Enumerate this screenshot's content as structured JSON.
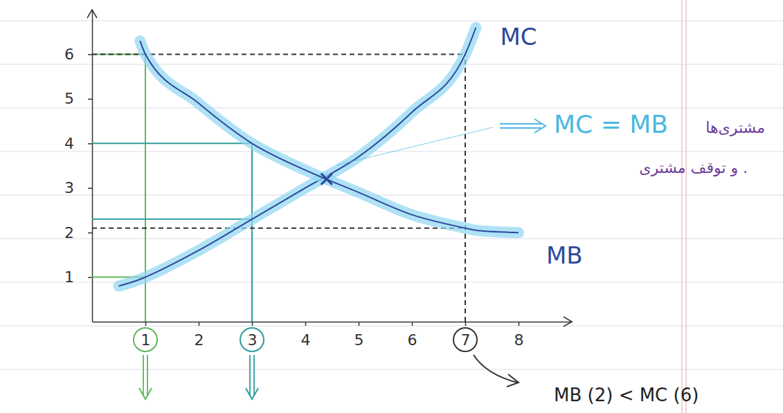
{
  "chart_data": {
    "type": "line",
    "x": [
      0.5,
      0.9,
      1,
      2,
      3,
      4,
      5,
      6,
      7,
      7.2,
      8
    ],
    "series": [
      {
        "name": "MC",
        "color": "#2c4a9c",
        "values": [
          0.8,
          0.95,
          1.0,
          1.6,
          2.3,
          3.0,
          3.7,
          4.7,
          6.0,
          6.6,
          null
        ]
      },
      {
        "name": "MB",
        "color": "#2c4a9c",
        "values": [
          null,
          6.3,
          6.0,
          4.9,
          4.0,
          3.4,
          2.9,
          2.4,
          2.1,
          2.05,
          2.0
        ]
      }
    ],
    "xlim": [
      0,
      9
    ],
    "ylim": [
      0,
      7
    ],
    "xticks": [
      1,
      2,
      3,
      4,
      5,
      6,
      7,
      8
    ],
    "yticks": [
      1,
      2,
      3,
      4,
      5,
      6
    ],
    "intersection": {
      "x": 4.4,
      "y": 3.2
    },
    "highlights": [
      {
        "x": 1,
        "values": [
          6,
          1
        ],
        "color": "#5cb85c",
        "line_style": "solid"
      },
      {
        "x": 3,
        "values": [
          4,
          2.3
        ],
        "color": "#2b9e9c",
        "line_style": "solid"
      },
      {
        "x": 7,
        "values": [
          6,
          2.1
        ],
        "color": "#333333",
        "line_style": "dashed"
      }
    ],
    "annotations": [
      {
        "text": "MC = MB",
        "color": "#4bb8e0"
      },
      {
        "text": "مشتری‌ها",
        "color": "#6a3d9a"
      },
      {
        "text": "و توقف مشتری .",
        "color": "#6a3d9a"
      },
      {
        "text": "MB (2) < MC (6)",
        "color": "#222222"
      }
    ]
  }
}
